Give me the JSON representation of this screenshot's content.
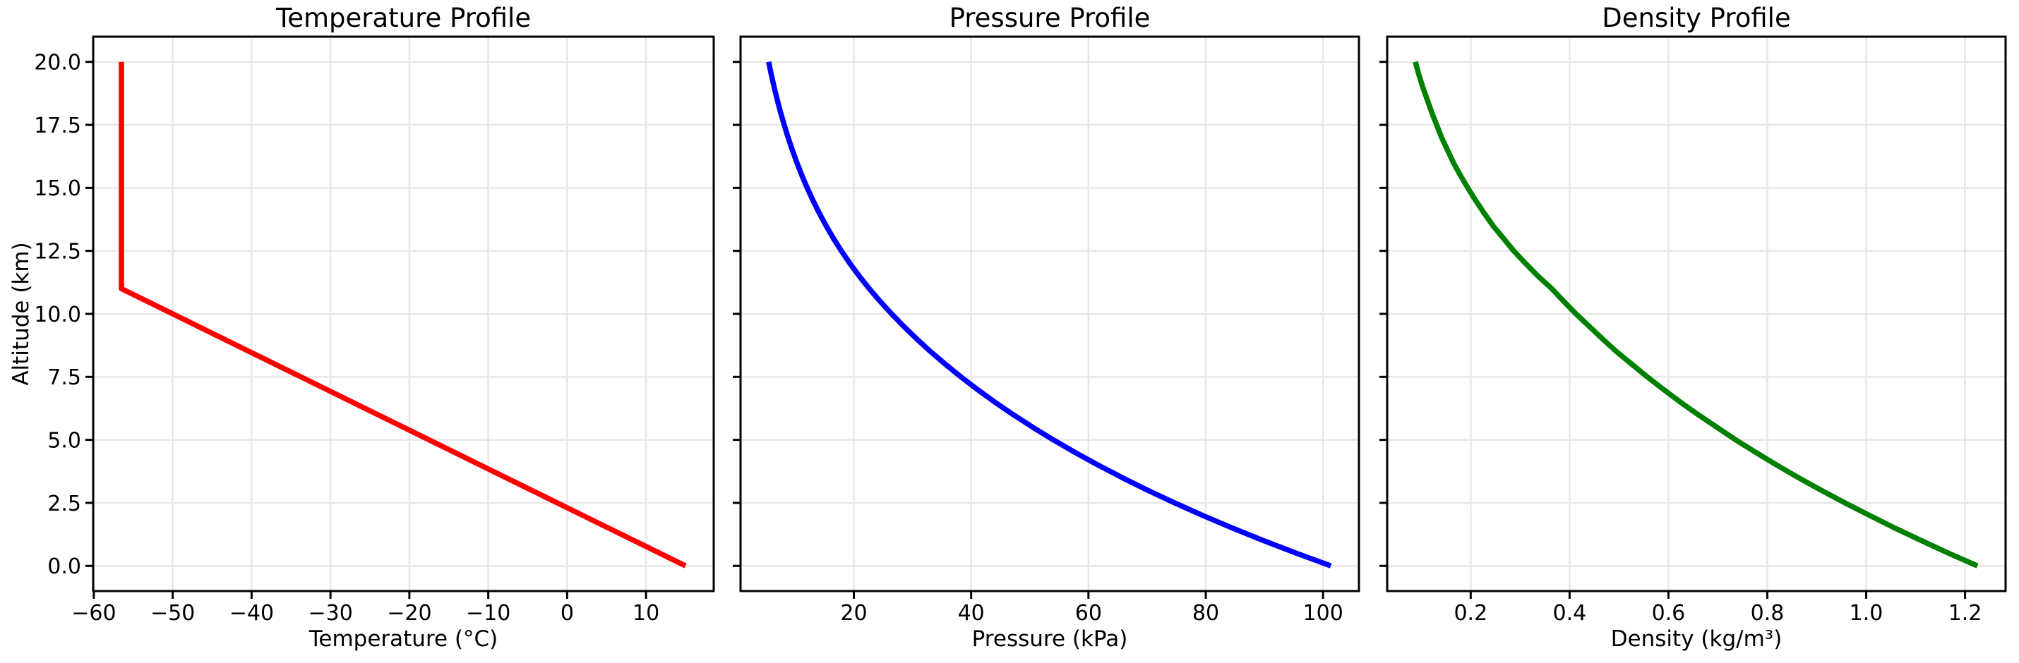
{
  "figure_title": "",
  "style": {
    "background": "#ffffff",
    "grid_color": "#e7e7e7",
    "spine_color": "#000000",
    "tick_color": "#000000",
    "text_color": "#000000"
  },
  "shared_y": {
    "label": "Altitude (km)",
    "ylim": [
      -1,
      21
    ],
    "yticks": [
      0,
      2.5,
      5,
      7.5,
      10,
      12.5,
      15,
      17.5,
      20
    ],
    "ytick_labels": [
      "0.0",
      "2.5",
      "5.0",
      "7.5",
      "10.0",
      "12.5",
      "15.0",
      "17.5",
      "20.0"
    ],
    "altitude_km": [
      0,
      0.5,
      1,
      1.5,
      2,
      2.5,
      3,
      3.5,
      4,
      4.5,
      5,
      5.5,
      6,
      6.5,
      7,
      7.5,
      8,
      8.5,
      9,
      9.5,
      10,
      10.5,
      11,
      11.5,
      12,
      12.5,
      13,
      13.5,
      14,
      14.5,
      15,
      15.5,
      16,
      16.5,
      17,
      17.5,
      18,
      18.5,
      19,
      19.5,
      20
    ]
  },
  "chart_data": [
    {
      "id": "temperature",
      "type": "line",
      "title": "Temperature Profile",
      "xlabel": "Temperature (°C)",
      "ylabel": "Altitude (km)",
      "line_color": "#ff0000",
      "grid": true,
      "xlim": [
        -60.08,
        18.58
      ],
      "xticks": [
        -60,
        -50,
        -40,
        -30,
        -20,
        -10,
        0,
        10
      ],
      "xtick_labels": [
        "−60",
        "−50",
        "−40",
        "−30",
        "−20",
        "−10",
        "0",
        "10"
      ],
      "values": [
        15,
        11.75,
        8.5,
        5.25,
        2,
        -1.25,
        -4.5,
        -7.75,
        -11,
        -14.25,
        -17.5,
        -20.75,
        -24,
        -27.25,
        -30.5,
        -33.75,
        -37,
        -40.25,
        -43.5,
        -46.75,
        -50,
        -53.25,
        -56.5,
        -56.5,
        -56.5,
        -56.5,
        -56.5,
        -56.5,
        -56.5,
        -56.5,
        -56.5,
        -56.5,
        -56.5,
        -56.5,
        -56.5,
        -56.5,
        -56.5,
        -56.5,
        -56.5,
        -56.5,
        -56.5
      ]
    },
    {
      "id": "pressure",
      "type": "line",
      "title": "Pressure Profile",
      "xlabel": "Pressure (kPa)",
      "line_color": "#0000ff",
      "grid": true,
      "xlim": [
        0.68,
        106.12
      ],
      "xticks": [
        20,
        40,
        60,
        80,
        100
      ],
      "xtick_labels": [
        "20",
        "40",
        "60",
        "80",
        "100"
      ],
      "values": [
        101.33,
        95.46,
        89.87,
        84.56,
        79.49,
        74.68,
        70.11,
        65.76,
        61.64,
        57.73,
        54.02,
        50.51,
        47.18,
        44.03,
        41.06,
        38.25,
        35.6,
        33.1,
        30.74,
        28.52,
        26.44,
        24.47,
        22.63,
        20.92,
        19.33,
        17.86,
        16.51,
        15.26,
        14.1,
        13.03,
        12.04,
        11.13,
        10.29,
        9.51,
        8.79,
        8.12,
        7.5,
        6.93,
        6.41,
        5.92,
        5.47
      ]
    },
    {
      "id": "density",
      "type": "line",
      "title": "Density Profile",
      "xlabel": "Density (kg/m³)",
      "line_color": "#008000",
      "grid": true,
      "xlim": [
        0.031,
        1.282
      ],
      "xticks": [
        0.2,
        0.4,
        0.6,
        0.8,
        1.0,
        1.2
      ],
      "xtick_labels": [
        "0.2",
        "0.4",
        "0.6",
        "0.8",
        "1.0",
        "1.2"
      ],
      "values": [
        1.225,
        1.167,
        1.112,
        1.058,
        1.007,
        0.957,
        0.909,
        0.863,
        0.819,
        0.777,
        0.736,
        0.698,
        0.66,
        0.624,
        0.59,
        0.557,
        0.526,
        0.495,
        0.467,
        0.44,
        0.413,
        0.388,
        0.364,
        0.336,
        0.311,
        0.287,
        0.266,
        0.245,
        0.227,
        0.21,
        0.194,
        0.179,
        0.165,
        0.153,
        0.141,
        0.131,
        0.121,
        0.112,
        0.103,
        0.095,
        0.088
      ]
    }
  ]
}
